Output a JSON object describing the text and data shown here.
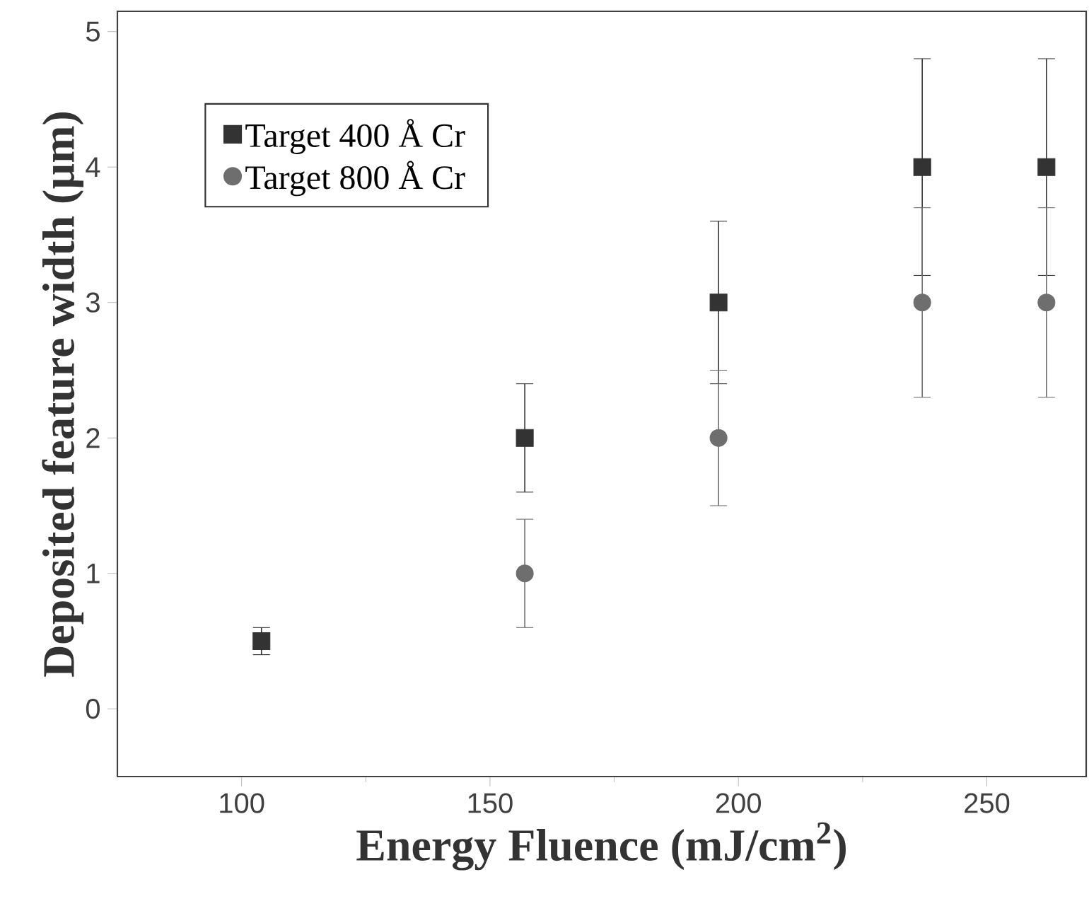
{
  "chart_data": {
    "type": "scatter",
    "xlabel": "Energy Fluence (mJ/cm$^{2}$)",
    "ylabel": "Deposited feature width (µm)",
    "xlim": [
      75,
      270
    ],
    "ylim": [
      -0.5,
      5.15
    ],
    "xticks": [
      100,
      150,
      200,
      250
    ],
    "yticks": [
      0,
      1,
      2,
      3,
      4,
      5
    ],
    "series": [
      {
        "name": "Target 400 Å Cr",
        "color": "#333333",
        "marker": "square",
        "x": [
          104,
          157,
          196,
          237,
          262
        ],
        "values": [
          0.5,
          2,
          3,
          4,
          4
        ],
        "errors": [
          [
            0.4,
            0.6
          ],
          [
            1.6,
            2.4
          ],
          [
            2.4,
            3.6
          ],
          [
            3.2,
            4.8
          ],
          [
            3.2,
            4.8
          ]
        ]
      },
      {
        "name": "Target 800 Å Cr",
        "color": "#6e6e6e",
        "marker": "circle",
        "x": [
          157,
          196,
          237,
          262
        ],
        "values": [
          1,
          2,
          3,
          3
        ],
        "errors": [
          [
            0.6,
            1.4
          ],
          [
            1.5,
            2.5
          ],
          [
            2.3,
            3.7
          ],
          [
            2.3,
            3.7
          ]
        ]
      }
    ],
    "legend": "top left",
    "grid": false
  }
}
